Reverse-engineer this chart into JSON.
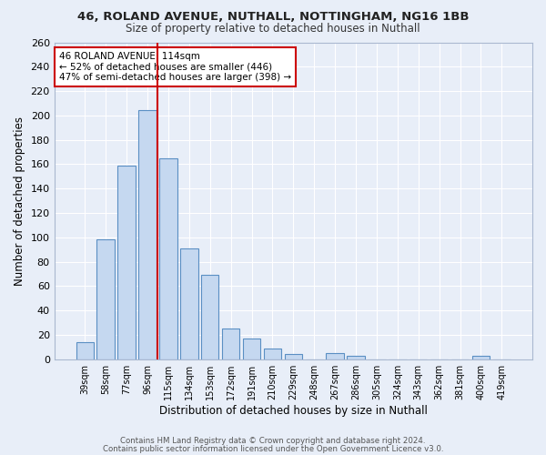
{
  "title1": "46, ROLAND AVENUE, NUTHALL, NOTTINGHAM, NG16 1BB",
  "title2": "Size of property relative to detached houses in Nuthall",
  "xlabel": "Distribution of detached houses by size in Nuthall",
  "ylabel": "Number of detached properties",
  "categories": [
    "39sqm",
    "58sqm",
    "77sqm",
    "96sqm",
    "115sqm",
    "134sqm",
    "153sqm",
    "172sqm",
    "191sqm",
    "210sqm",
    "229sqm",
    "248sqm",
    "267sqm",
    "286sqm",
    "305sqm",
    "324sqm",
    "343sqm",
    "362sqm",
    "381sqm",
    "400sqm",
    "419sqm"
  ],
  "values": [
    14,
    98,
    159,
    204,
    165,
    91,
    69,
    25,
    17,
    9,
    4,
    0,
    5,
    3,
    0,
    0,
    0,
    0,
    0,
    3,
    0
  ],
  "bar_color": "#c5d8f0",
  "bar_edge_color": "#5a8fc3",
  "bg_color": "#e8eef8",
  "grid_color": "#ffffff",
  "vline_index": 4,
  "vline_color": "#cc0000",
  "annotation_line1": "46 ROLAND AVENUE: 114sqm",
  "annotation_line2": "← 52% of detached houses are smaller (446)",
  "annotation_line3": "47% of semi-detached houses are larger (398) →",
  "annotation_box_color": "#ffffff",
  "annotation_box_edge": "#cc0000",
  "ylim": [
    0,
    260
  ],
  "yticks": [
    0,
    20,
    40,
    60,
    80,
    100,
    120,
    140,
    160,
    180,
    200,
    220,
    240,
    260
  ],
  "footnote1": "Contains HM Land Registry data © Crown copyright and database right 2024.",
  "footnote2": "Contains public sector information licensed under the Open Government Licence v3.0."
}
